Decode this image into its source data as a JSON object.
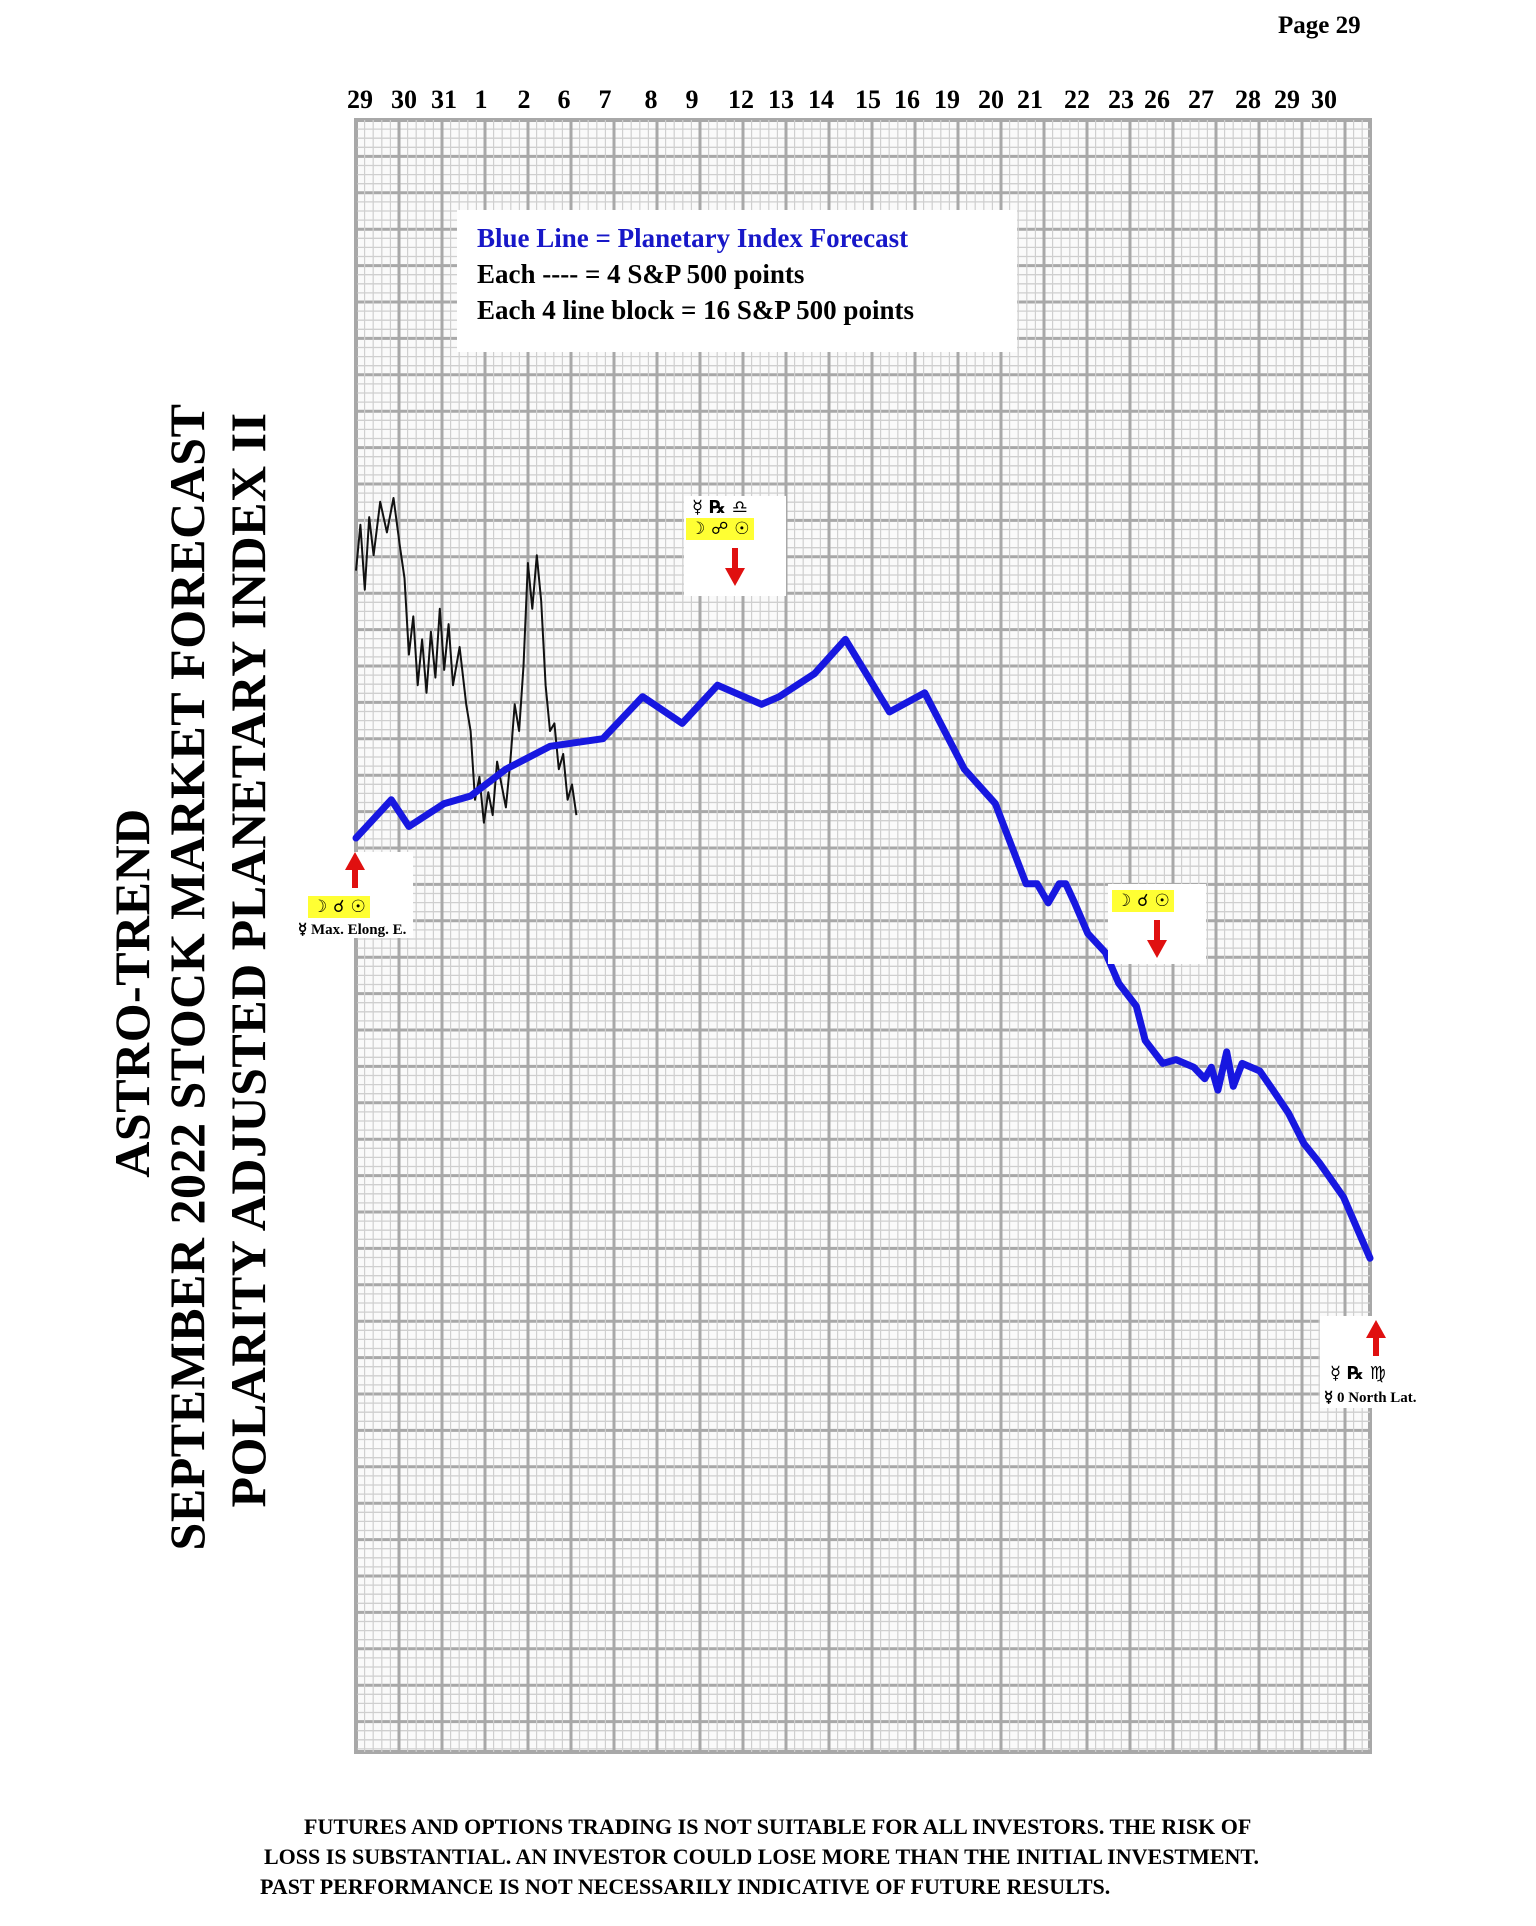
{
  "page": {
    "label": "Page  29"
  },
  "titles": {
    "line1": "ASTRO-TREND",
    "line2": "SEPTEMBER 2022  STOCK MARKET FORECAST",
    "line3": "POLARITY ADJUSTED PLANETARY INDEX II"
  },
  "legend": {
    "line1": "Blue Line = Planetary Index Forecast",
    "line2": "Each ---- =    4 S&P 500 points",
    "line3": "Each 4 line block =  16  S&P 500 points"
  },
  "annotations": {
    "a1": {
      "glyphs": "☽ ☌ ☉",
      "note": "☿ Max. Elong. E."
    },
    "a2": {
      "glyphs_top": "☿ ℞ ♎",
      "glyphs": "☽ ☍ ☉"
    },
    "a3": {
      "glyphs": "☽ ☌ ☉"
    },
    "a4": {
      "glyphs_top": "☿ ℞ ♍",
      "note": "☿ 0 North Lat."
    }
  },
  "disclaimer": {
    "line1": "FUTURES AND OPTIONS TRADING IS NOT SUITABLE FOR ALL INVESTORS.  THE RISK OF",
    "line2": "LOSS IS SUBSTANTIAL.  AN INVESTOR COULD LOSE MORE THAN THE INITIAL INVESTMENT.",
    "line3": "PAST PERFORMANCE IS NOT NECESSARILY INDICATIVE OF FUTURE RESULTS."
  },
  "colors": {
    "forecast": "#1717e0",
    "grid_light": "#cfcfcf",
    "grid_dark": "#a8a8a8",
    "arrow": "#e01010",
    "highlight": "#ffff33"
  },
  "chart_data": {
    "type": "line",
    "x_tick_labels": [
      "29",
      "30",
      "31",
      "1",
      "2",
      "6",
      "7",
      "8",
      "9",
      "12",
      "13",
      "14",
      "15",
      "16",
      "19",
      "20",
      "21",
      "22",
      "23",
      "26",
      "27",
      "28",
      "29",
      "30"
    ],
    "grid": true,
    "series": [
      {
        "x": [
          0,
          0.8,
          1.2,
          2,
          2.6,
          3.4,
          4.4,
          5.6,
          6.5,
          7.4,
          8.2,
          9.2,
          9.6,
          10.4,
          11.1,
          12.1,
          12.9,
          13.8,
          14.5,
          14.8,
          15.2,
          15.45,
          15.7,
          15.95,
          16.1,
          16.3,
          16.6,
          17.0,
          17.3,
          17.7,
          17.9,
          18.3,
          18.6,
          19.0,
          19.25,
          19.4,
          19.55,
          19.75,
          19.9,
          20.1,
          20.5,
          20.8,
          21.15,
          21.5,
          21.85,
          22.4,
          23
        ],
        "y": [
          0,
          10,
          3,
          9,
          11,
          18,
          24,
          26,
          37,
          30,
          40,
          35,
          37,
          43,
          52,
          33,
          38,
          18,
          9,
          0,
          -12,
          -12,
          -17,
          -12,
          -12,
          -17,
          -25,
          -30,
          -38,
          -44,
          -53,
          -59,
          -58,
          -60,
          -63,
          -60,
          -66,
          -56,
          -65,
          -59,
          -61,
          -66,
          -72,
          -80,
          -85,
          -94,
          -110
        ]
      },
      {
        "x": [
          0,
          0.1,
          0.2,
          0.3,
          0.4,
          0.55,
          0.7,
          0.85,
          1.0,
          1.1,
          1.2,
          1.3,
          1.4,
          1.5,
          1.6,
          1.7,
          1.8,
          1.9,
          2.0,
          2.1,
          2.2,
          2.35,
          2.5,
          2.6,
          2.7,
          2.8,
          2.9,
          3.0,
          3.1,
          3.2,
          3.3,
          3.4,
          3.5,
          3.6,
          3.7,
          3.8,
          3.9,
          4.0,
          4.1,
          4.2,
          4.3,
          4.4,
          4.5,
          4.6,
          4.7,
          4.8,
          4.9,
          5.0
        ],
        "y": [
          70,
          82,
          65,
          84,
          74,
          88,
          80,
          89,
          76,
          68,
          48,
          58,
          40,
          52,
          38,
          54,
          42,
          60,
          44,
          56,
          40,
          50,
          35,
          28,
          10,
          16,
          4,
          12,
          6,
          20,
          14,
          8,
          20,
          35,
          28,
          45,
          72,
          60,
          74,
          62,
          40,
          28,
          30,
          18,
          22,
          10,
          14,
          6
        ]
      }
    ]
  }
}
